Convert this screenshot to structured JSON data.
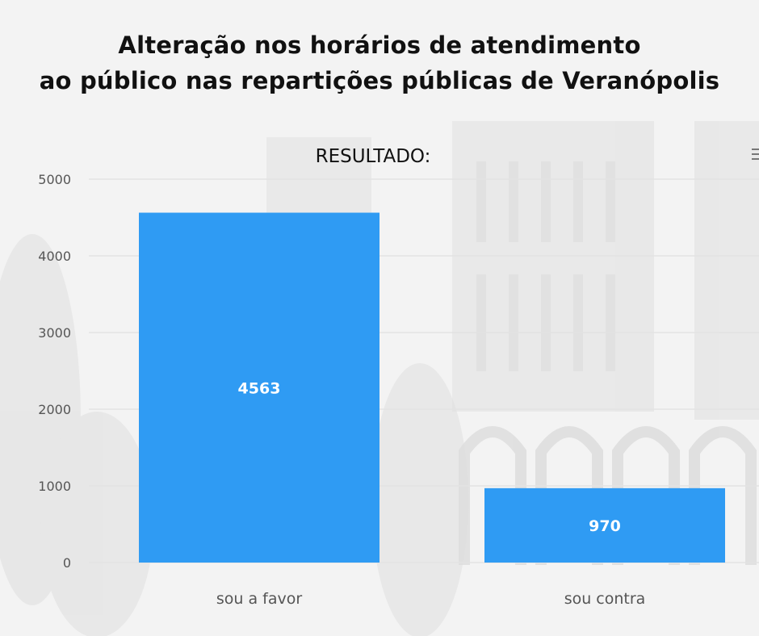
{
  "title_lines": [
    "Alteração nos horários de atendimento",
    "ao público nas repartições públicas de Veranópolis"
  ],
  "chart_data": {
    "type": "bar",
    "title": "RESULTADO:",
    "categories": [
      "sou a favor",
      "sou contra"
    ],
    "values": [
      4563,
      970
    ],
    "data_labels": [
      "4563",
      "970"
    ],
    "yticks": [
      "0",
      "1000",
      "2000",
      "3000",
      "4000",
      "5000"
    ],
    "ylim": [
      0,
      5000
    ],
    "xlabel": "",
    "ylabel": "",
    "grid": true,
    "legend": "none",
    "bar_color": "#2f9bf3",
    "grid_color": "#e3e3e3"
  },
  "toolbar": {
    "menu_icon": "hamburger-menu-icon"
  }
}
